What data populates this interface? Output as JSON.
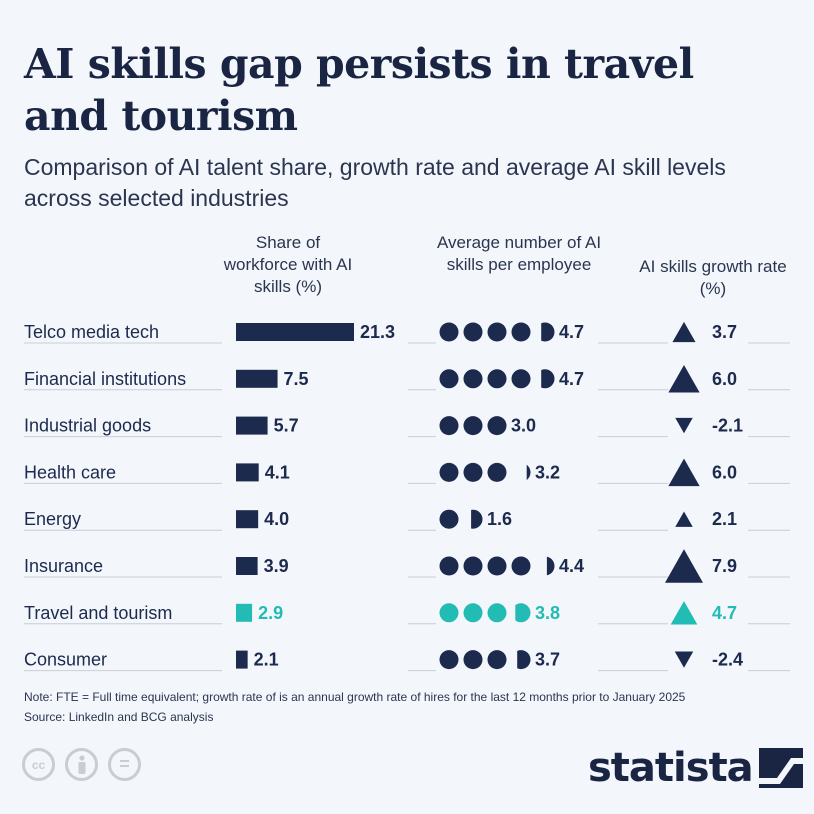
{
  "title": "AI skills gap persists in travel and tourism",
  "subtitle": "Comparison of AI talent share, growth rate and average AI skill levels across selected industries",
  "columns": {
    "share": "Share of workforce with AI skills (%)",
    "avg_skills": "Average number of AI skills per employee",
    "growth": "AI skills growth rate (%)"
  },
  "colors": {
    "navy": "#1c2a4e",
    "teal": "#22bcb5",
    "grid": "#c8ced8"
  },
  "chart_data": {
    "type": "table",
    "categories": [
      "Telco media tech",
      "Financial institutions",
      "Industrial goods",
      "Health care",
      "Energy",
      "Insurance",
      "Travel and tourism",
      "Consumer"
    ],
    "highlight": "Travel and tourism",
    "series": [
      {
        "name": "Share of workforce with AI skills (%)",
        "values": [
          21.3,
          7.5,
          5.7,
          4.1,
          4.0,
          3.9,
          2.9,
          2.1
        ],
        "labels": [
          "21.3",
          "7.5",
          "5.7",
          "4.1",
          "4.0",
          "3.9",
          "2.9",
          "2.1"
        ]
      },
      {
        "name": "Average number of AI skills per employee",
        "values": [
          4.7,
          4.7,
          3.0,
          3.2,
          1.6,
          4.4,
          3.8,
          3.7
        ],
        "labels": [
          "4.7",
          "4.7",
          "3.0",
          "3.2",
          "1.6",
          "4.4",
          "3.8",
          "3.7"
        ]
      },
      {
        "name": "AI skills growth rate (%)",
        "values": [
          3.7,
          6.0,
          -2.1,
          6.0,
          2.1,
          7.9,
          4.7,
          -2.4
        ],
        "labels": [
          "3.7",
          "6.0",
          "-2.1",
          "6.0",
          "2.1",
          "7.9",
          "4.7",
          "-2.4"
        ]
      }
    ]
  },
  "note": "Note: FTE = Full time equivalent; growth rate of is an annual growth rate of hires for the last 12 months prior to January 2025",
  "source": "Source: LinkedIn and BCG analysis",
  "license_icons": [
    "cc-icon",
    "attribution-icon",
    "no-derivatives-icon"
  ],
  "license_glyphs": [
    "cc",
    "",
    "="
  ],
  "logo": "statista"
}
